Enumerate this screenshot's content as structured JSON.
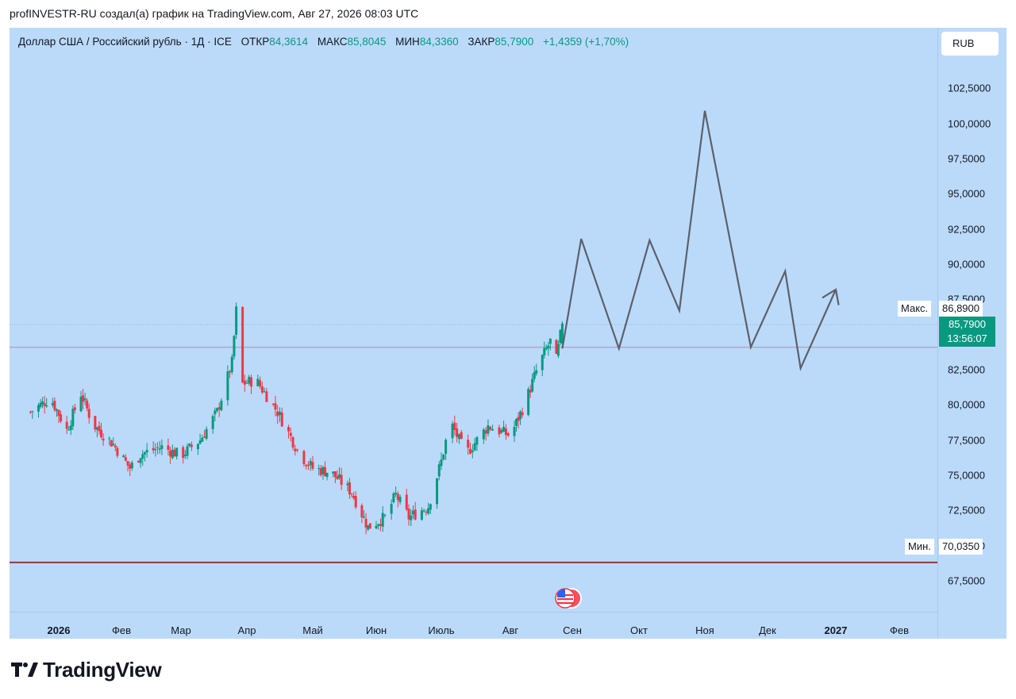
{
  "header": {
    "title": "profINVESTR-RU создал(а) график на TradingView.com, Авг 27, 2026 08:03 UTC"
  },
  "info": {
    "symbol": "Доллар США / Российский рубль · 1Д · ICE",
    "open_label": "ОТКР",
    "open": "84,3614",
    "high_label": "МАКС",
    "high": "85,8045",
    "low_label": "МИН",
    "low": "84,3360",
    "close_label": "ЗАКР",
    "close": "85,7900",
    "change": "+1,4359 (+1,70%)"
  },
  "currency": "RUB",
  "price_tags": {
    "max_label": "Макс.",
    "max_value": "86,8900",
    "last_value": "85,7900",
    "countdown": "13:56:07",
    "min_label": "Мин.",
    "min_value": "70,0350"
  },
  "colors": {
    "background": "#bbdafa",
    "up": "#089981",
    "down": "#f23645",
    "projection": "#5d606b",
    "level_line": "#b2a7c0",
    "support_line": "#8b3a3a"
  },
  "brand": {
    "name": "TradingView"
  },
  "chart_data": {
    "type": "candlestick",
    "yaxis_ticks": [
      "102,5000",
      "100,0000",
      "97,5000",
      "95,0000",
      "92,5000",
      "90,0000",
      "87,5000",
      "82,5000",
      "80,0000",
      "77,5000",
      "75,0000",
      "72,5000",
      "70,0000",
      "67,5000"
    ],
    "ylim": [
      65.3,
      106.8
    ],
    "xaxis_ticks": [
      {
        "label": "2026",
        "bold": true,
        "date": "2026-01-01"
      },
      {
        "label": "Фев",
        "bold": false,
        "date": "2026-02-01"
      },
      {
        "label": "Мар",
        "bold": false,
        "date": "2026-03-01"
      },
      {
        "label": "Апр",
        "bold": false,
        "date": "2026-04-01"
      },
      {
        "label": "Май",
        "bold": false,
        "date": "2026-05-01"
      },
      {
        "label": "Июн",
        "bold": false,
        "date": "2026-06-01"
      },
      {
        "label": "Июль",
        "bold": false,
        "date": "2026-07-01"
      },
      {
        "label": "Авг",
        "bold": false,
        "date": "2026-08-01"
      },
      {
        "label": "Сен",
        "bold": false,
        "date": "2026-09-01"
      },
      {
        "label": "Окт",
        "bold": false,
        "date": "2026-10-01"
      },
      {
        "label": "Ноя",
        "bold": false,
        "date": "2026-11-01"
      },
      {
        "label": "Дек",
        "bold": false,
        "date": "2026-12-01"
      },
      {
        "label": "2027",
        "bold": true,
        "date": "2027-01-01"
      },
      {
        "label": "Фев",
        "bold": false,
        "date": "2027-02-01"
      }
    ],
    "price_anchors": [
      {
        "date": "2025-12-18",
        "value": 79.5
      },
      {
        "date": "2025-12-28",
        "value": 80.5
      },
      {
        "date": "2026-01-05",
        "value": 78.2
      },
      {
        "date": "2026-01-12",
        "value": 80.8
      },
      {
        "date": "2026-01-18",
        "value": 78.6
      },
      {
        "date": "2026-01-28",
        "value": 77.2
      },
      {
        "date": "2026-02-05",
        "value": 75.5
      },
      {
        "date": "2026-02-10",
        "value": 76.5
      },
      {
        "date": "2026-02-20",
        "value": 77.0
      },
      {
        "date": "2026-03-01",
        "value": 76.4
      },
      {
        "date": "2026-03-10",
        "value": 77.5
      },
      {
        "date": "2026-03-18",
        "value": 79.5
      },
      {
        "date": "2026-03-25",
        "value": 83.0
      },
      {
        "date": "2026-03-27",
        "value": 86.7
      },
      {
        "date": "2026-03-30",
        "value": 81.5
      },
      {
        "date": "2026-04-05",
        "value": 81.8
      },
      {
        "date": "2026-04-15",
        "value": 79.5
      },
      {
        "date": "2026-04-25",
        "value": 76.5
      },
      {
        "date": "2026-05-01",
        "value": 75.5
      },
      {
        "date": "2026-05-10",
        "value": 75.2
      },
      {
        "date": "2026-05-20",
        "value": 73.8
      },
      {
        "date": "2026-05-28",
        "value": 71.3
      },
      {
        "date": "2026-06-05",
        "value": 72.0
      },
      {
        "date": "2026-06-10",
        "value": 73.6
      },
      {
        "date": "2026-06-16",
        "value": 72.0
      },
      {
        "date": "2026-06-25",
        "value": 72.8
      },
      {
        "date": "2026-07-01",
        "value": 76.0
      },
      {
        "date": "2026-07-05",
        "value": 78.8
      },
      {
        "date": "2026-07-12",
        "value": 76.5
      },
      {
        "date": "2026-07-22",
        "value": 78.5
      },
      {
        "date": "2026-08-01",
        "value": 77.8
      },
      {
        "date": "2026-08-08",
        "value": 80.0
      },
      {
        "date": "2026-08-15",
        "value": 82.8
      },
      {
        "date": "2026-08-21",
        "value": 84.5
      },
      {
        "date": "2026-08-24",
        "value": 83.2
      },
      {
        "date": "2026-08-27",
        "value": 85.79
      }
    ],
    "projection": [
      {
        "date": "2026-08-27",
        "value": 84.0
      },
      {
        "date": "2026-09-05",
        "value": 91.8
      },
      {
        "date": "2026-09-22",
        "value": 84.0
      },
      {
        "date": "2026-10-06",
        "value": 91.7
      },
      {
        "date": "2026-10-20",
        "value": 86.7
      },
      {
        "date": "2026-11-01",
        "value": 100.9
      },
      {
        "date": "2026-11-23",
        "value": 84.1
      },
      {
        "date": "2026-12-09",
        "value": 89.5
      },
      {
        "date": "2026-12-16",
        "value": 82.6
      },
      {
        "date": "2027-01-01",
        "value": 88.2
      }
    ],
    "levels": [
      {
        "name": "resistance",
        "value": 84.1
      },
      {
        "name": "support",
        "value": 68.8
      },
      {
        "name": "high",
        "value": 86.89
      }
    ]
  }
}
